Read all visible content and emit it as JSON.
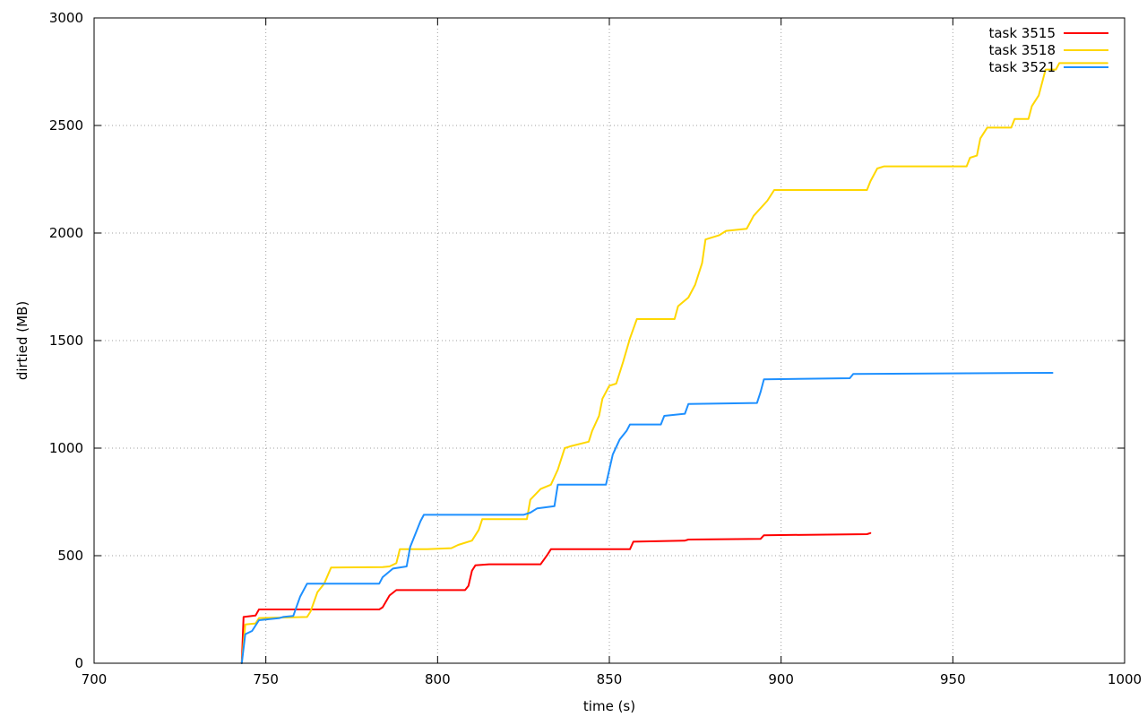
{
  "chart_data": {
    "type": "line",
    "title": "",
    "xlabel": "time (s)",
    "ylabel": "dirtied (MB)",
    "xlim": [
      700,
      1000
    ],
    "ylim": [
      0,
      3000
    ],
    "xticks": [
      700,
      750,
      800,
      850,
      900,
      950,
      1000
    ],
    "yticks": [
      0,
      500,
      1000,
      1500,
      2000,
      2500,
      3000
    ],
    "grid": true,
    "legend_position": "top-right",
    "series": [
      {
        "name": "task 3515",
        "color": "#ff0000",
        "points": [
          [
            743,
            0
          ],
          [
            743.5,
            215
          ],
          [
            747,
            222
          ],
          [
            748,
            250
          ],
          [
            783,
            250
          ],
          [
            784,
            260
          ],
          [
            786,
            315
          ],
          [
            788,
            340
          ],
          [
            808,
            340
          ],
          [
            809,
            360
          ],
          [
            810,
            430
          ],
          [
            811,
            455
          ],
          [
            815,
            460
          ],
          [
            830,
            460
          ],
          [
            832,
            505
          ],
          [
            833,
            530
          ],
          [
            856,
            530
          ],
          [
            857,
            565
          ],
          [
            872,
            570
          ],
          [
            873,
            575
          ],
          [
            894,
            578
          ],
          [
            895,
            595
          ],
          [
            925,
            600
          ],
          [
            926,
            605
          ]
        ]
      },
      {
        "name": "task 3518",
        "color": "#ffd700",
        "points": [
          [
            743,
            0
          ],
          [
            744,
            180
          ],
          [
            747,
            185
          ],
          [
            748,
            210
          ],
          [
            762,
            215
          ],
          [
            763,
            240
          ],
          [
            765,
            330
          ],
          [
            767,
            370
          ],
          [
            769,
            445
          ],
          [
            784,
            447
          ],
          [
            786,
            450
          ],
          [
            788,
            465
          ],
          [
            789,
            530
          ],
          [
            797,
            530
          ],
          [
            804,
            535
          ],
          [
            806,
            550
          ],
          [
            810,
            570
          ],
          [
            812,
            620
          ],
          [
            813,
            670
          ],
          [
            826,
            670
          ],
          [
            827,
            760
          ],
          [
            830,
            810
          ],
          [
            833,
            830
          ],
          [
            835,
            900
          ],
          [
            837,
            1000
          ],
          [
            839,
            1010
          ],
          [
            844,
            1030
          ],
          [
            845,
            1080
          ],
          [
            847,
            1150
          ],
          [
            848,
            1230
          ],
          [
            850,
            1290
          ],
          [
            852,
            1300
          ],
          [
            854,
            1400
          ],
          [
            856,
            1510
          ],
          [
            858,
            1600
          ],
          [
            869,
            1600
          ],
          [
            870,
            1660
          ],
          [
            873,
            1700
          ],
          [
            875,
            1760
          ],
          [
            877,
            1860
          ],
          [
            878,
            1970
          ],
          [
            882,
            1990
          ],
          [
            884,
            2010
          ],
          [
            890,
            2020
          ],
          [
            892,
            2080
          ],
          [
            896,
            2150
          ],
          [
            898,
            2200
          ],
          [
            925,
            2200
          ],
          [
            926,
            2240
          ],
          [
            928,
            2300
          ],
          [
            930,
            2310
          ],
          [
            954,
            2310
          ],
          [
            955,
            2350
          ],
          [
            957,
            2360
          ],
          [
            958,
            2440
          ],
          [
            960,
            2490
          ],
          [
            967,
            2490
          ],
          [
            968,
            2530
          ],
          [
            972,
            2530
          ],
          [
            973,
            2590
          ],
          [
            975,
            2640
          ],
          [
            977,
            2760
          ],
          [
            980,
            2760
          ],
          [
            981,
            2790
          ],
          [
            995,
            2790
          ]
        ]
      },
      {
        "name": "task 3521",
        "color": "#1e90ff",
        "points": [
          [
            743,
            0
          ],
          [
            744,
            135
          ],
          [
            746,
            150
          ],
          [
            748,
            200
          ],
          [
            754,
            210
          ],
          [
            755,
            215
          ],
          [
            758,
            220
          ],
          [
            760,
            310
          ],
          [
            762,
            370
          ],
          [
            783,
            370
          ],
          [
            784,
            400
          ],
          [
            787,
            440
          ],
          [
            791,
            450
          ],
          [
            792,
            540
          ],
          [
            795,
            660
          ],
          [
            796,
            690
          ],
          [
            825,
            690
          ],
          [
            827,
            700
          ],
          [
            829,
            720
          ],
          [
            834,
            730
          ],
          [
            835,
            830
          ],
          [
            849,
            830
          ],
          [
            850,
            900
          ],
          [
            851,
            970
          ],
          [
            853,
            1040
          ],
          [
            855,
            1080
          ],
          [
            856,
            1110
          ],
          [
            865,
            1110
          ],
          [
            866,
            1150
          ],
          [
            872,
            1160
          ],
          [
            873,
            1205
          ],
          [
            893,
            1210
          ],
          [
            894,
            1260
          ],
          [
            895,
            1320
          ],
          [
            920,
            1325
          ],
          [
            921,
            1345
          ],
          [
            979,
            1350
          ]
        ]
      }
    ]
  }
}
